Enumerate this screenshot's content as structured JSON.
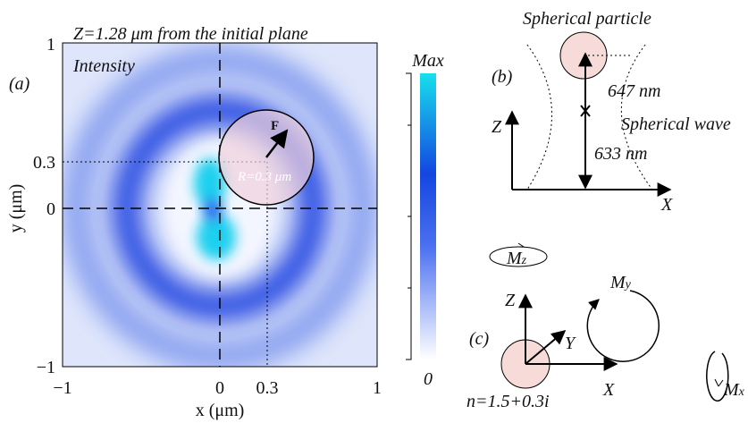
{
  "panel_a": {
    "label": "(a)",
    "title": "Z=1.28 μm from the initial plane",
    "map_label": "Intensity",
    "x_label": "x (μm)",
    "y_label": "y (μm)",
    "xticks": [
      "−1",
      "0",
      "0.3",
      "1"
    ],
    "yticks": [
      "1",
      "0.3",
      "0",
      "−1"
    ],
    "colorbar": {
      "max": "Max",
      "min": "0"
    },
    "force": "F",
    "radius": "R=0.3 μm"
  },
  "panel_b": {
    "label": "(b)",
    "particle": "Spherical particle",
    "wave": "Spherical wave",
    "distance_top": "647 nm",
    "distance_bottom": "633 nm",
    "z_axis": "Z",
    "x_axis": "X"
  },
  "panel_c": {
    "label": "(c)",
    "mz": {
      "symbol": "M",
      "sub": "z"
    },
    "my": {
      "symbol": "M",
      "sub": "y"
    },
    "mx": {
      "symbol": "M",
      "sub": "x"
    },
    "z_axis": "Z",
    "y_axis": "Y",
    "x_axis": "X",
    "index": "n=1.5+0.3i"
  }
}
